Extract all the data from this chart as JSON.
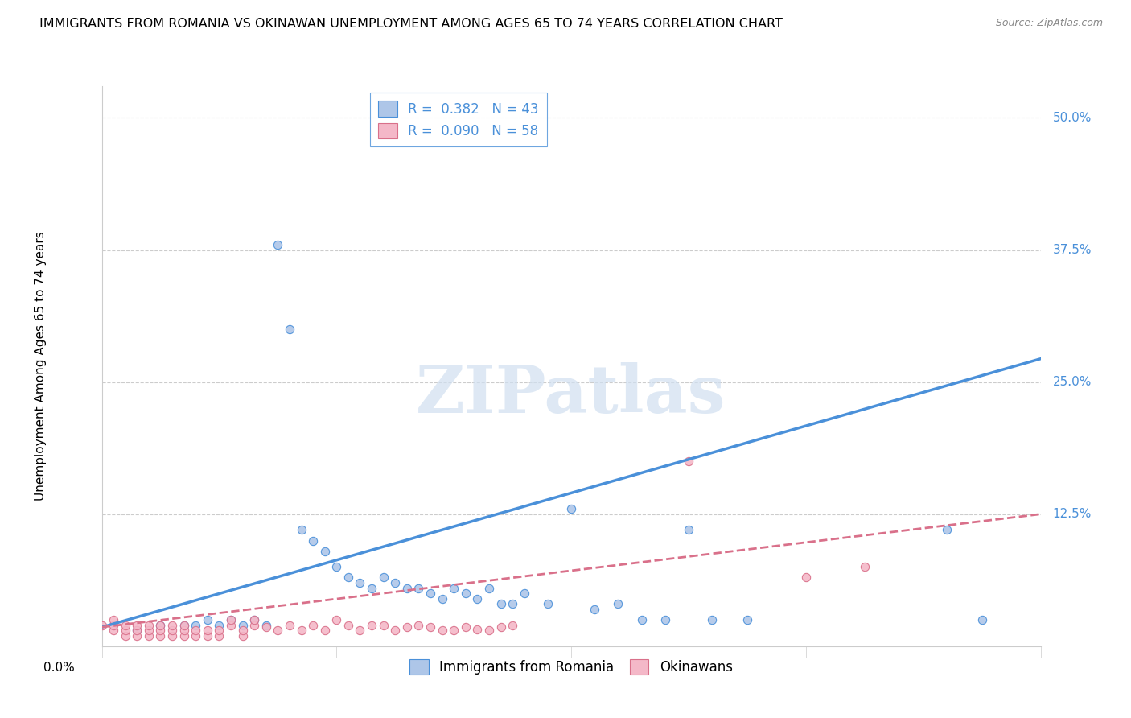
{
  "title": "IMMIGRANTS FROM ROMANIA VS OKINAWAN UNEMPLOYMENT AMONG AGES 65 TO 74 YEARS CORRELATION CHART",
  "source": "Source: ZipAtlas.com",
  "ylabel": "Unemployment Among Ages 65 to 74 years",
  "ylabel_right_labels": [
    "50.0%",
    "37.5%",
    "25.0%",
    "12.5%"
  ],
  "ylabel_right_values": [
    0.5,
    0.375,
    0.25,
    0.125
  ],
  "xlim": [
    0.0,
    0.08
  ],
  "ylim": [
    0.0,
    0.53
  ],
  "blue_color": "#aec6e8",
  "pink_color": "#f4b8c8",
  "blue_line_color": "#4a90d9",
  "pink_line_color": "#d9708a",
  "grid_color": "#cccccc",
  "blue_line_x": [
    0.0,
    0.08
  ],
  "blue_line_y": [
    0.018,
    0.272
  ],
  "pink_line_x": [
    0.0,
    0.08
  ],
  "pink_line_y": [
    0.018,
    0.125
  ],
  "blue_scatter_x": [
    0.003,
    0.005,
    0.007,
    0.008,
    0.009,
    0.01,
    0.011,
    0.012,
    0.013,
    0.014,
    0.015,
    0.016,
    0.017,
    0.018,
    0.019,
    0.02,
    0.021,
    0.022,
    0.023,
    0.024,
    0.025,
    0.026,
    0.027,
    0.028,
    0.029,
    0.03,
    0.031,
    0.032,
    0.033,
    0.034,
    0.035,
    0.036,
    0.038,
    0.04,
    0.042,
    0.044,
    0.046,
    0.048,
    0.05,
    0.052,
    0.055,
    0.072,
    0.075
  ],
  "blue_scatter_y": [
    0.015,
    0.02,
    0.02,
    0.02,
    0.025,
    0.02,
    0.025,
    0.02,
    0.025,
    0.02,
    0.38,
    0.3,
    0.11,
    0.1,
    0.09,
    0.075,
    0.065,
    0.06,
    0.055,
    0.065,
    0.06,
    0.055,
    0.055,
    0.05,
    0.045,
    0.055,
    0.05,
    0.045,
    0.055,
    0.04,
    0.04,
    0.05,
    0.04,
    0.13,
    0.035,
    0.04,
    0.025,
    0.025,
    0.11,
    0.025,
    0.025,
    0.11,
    0.025
  ],
  "pink_scatter_x": [
    0.0,
    0.001,
    0.001,
    0.001,
    0.002,
    0.002,
    0.002,
    0.003,
    0.003,
    0.003,
    0.004,
    0.004,
    0.004,
    0.005,
    0.005,
    0.005,
    0.006,
    0.006,
    0.006,
    0.007,
    0.007,
    0.007,
    0.008,
    0.008,
    0.009,
    0.009,
    0.01,
    0.01,
    0.011,
    0.011,
    0.012,
    0.012,
    0.013,
    0.013,
    0.014,
    0.015,
    0.016,
    0.017,
    0.018,
    0.019,
    0.02,
    0.021,
    0.022,
    0.023,
    0.024,
    0.025,
    0.026,
    0.027,
    0.028,
    0.029,
    0.03,
    0.031,
    0.032,
    0.033,
    0.034,
    0.035,
    0.05,
    0.06,
    0.065
  ],
  "pink_scatter_y": [
    0.02,
    0.015,
    0.02,
    0.025,
    0.01,
    0.015,
    0.02,
    0.01,
    0.015,
    0.02,
    0.01,
    0.015,
    0.02,
    0.01,
    0.015,
    0.02,
    0.01,
    0.015,
    0.02,
    0.01,
    0.015,
    0.02,
    0.01,
    0.015,
    0.01,
    0.015,
    0.01,
    0.015,
    0.02,
    0.025,
    0.01,
    0.015,
    0.02,
    0.025,
    0.018,
    0.015,
    0.02,
    0.015,
    0.02,
    0.015,
    0.025,
    0.02,
    0.015,
    0.02,
    0.02,
    0.015,
    0.018,
    0.02,
    0.018,
    0.015,
    0.015,
    0.018,
    0.016,
    0.015,
    0.018,
    0.02,
    0.175,
    0.065,
    0.075
  ],
  "title_fontsize": 11.5,
  "source_fontsize": 9,
  "legend_fontsize": 12,
  "tick_fontsize": 11,
  "ylabel_fontsize": 11
}
